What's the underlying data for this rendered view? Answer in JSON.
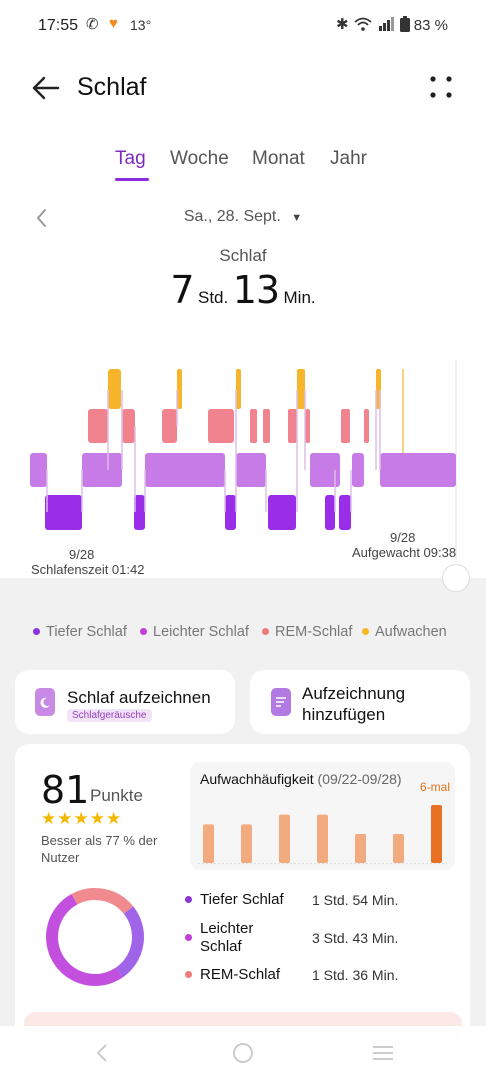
{
  "status": {
    "time": "17:55",
    "temp": "13°",
    "battery": "83 %"
  },
  "header": {
    "title": "Schlaf"
  },
  "tabs": [
    "Tag",
    "Woche",
    "Monat",
    "Jahr"
  ],
  "date": "Sa., 28. Sept.",
  "summary": {
    "label": "Schlaf",
    "hours": "7",
    "hours_unit": "Std.",
    "minutes": "13",
    "minutes_unit": "Min."
  },
  "chart": {
    "start_date": "9/28",
    "start_label": "Schlafenszeit 01:42",
    "end_date": "9/28",
    "end_label": "Aufgewacht 09:38",
    "colors": {
      "deep": "#9a2ee8",
      "light": "#c77be6",
      "rem": "#f0838d",
      "awake": "#f6b52a"
    }
  },
  "legend": [
    {
      "label": "Tiefer Schlaf",
      "color": "#8b34d9"
    },
    {
      "label": "Leichter Schlaf",
      "color": "#c13fd6"
    },
    {
      "label": "REM-Schlaf",
      "color": "#f07a7a"
    },
    {
      "label": "Aufwachen",
      "color": "#f5b823"
    }
  ],
  "actions": {
    "record": {
      "label": "Schlaf aufzeichnen",
      "badge": "Schlafgeräusche"
    },
    "add": {
      "label": "Aufzeichnung hinzufügen"
    }
  },
  "score": {
    "value": "81",
    "unit": "Punkte",
    "stars": "★★★★★",
    "rating": 4.5,
    "comparison": "Besser als 77 % der Nutzer"
  },
  "wake_frequency": {
    "title": "Aufwachhäufigkeit",
    "range": "(09/22-09/28)",
    "highlight": "6-mal",
    "values": [
      4,
      4,
      5,
      5,
      3,
      3,
      6
    ]
  },
  "stats": [
    {
      "name": "Tiefer Schlaf",
      "value": "1 Std. 54 Min.",
      "color": "#8b34d9",
      "minutes": 114
    },
    {
      "name": "Leichter Schlaf",
      "value": "3 Std. 43 Min.",
      "color": "#c13fd6",
      "minutes": 223
    },
    {
      "name": "REM-Schlaf",
      "value": "1 Std. 36 Min.",
      "color": "#f07a7a",
      "minutes": 96
    }
  ]
}
